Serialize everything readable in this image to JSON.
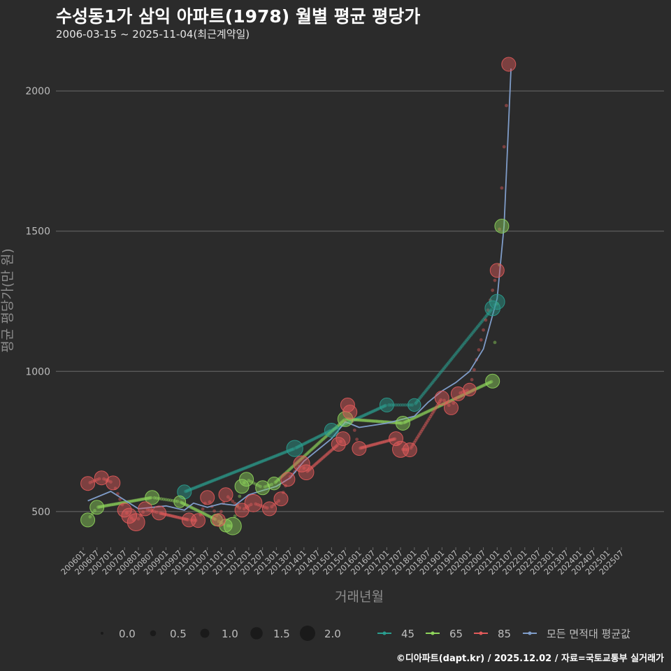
{
  "title": "수성동1가 삼익 아파트(1978) 월별 평균 평당가",
  "subtitle": "2006-03-15 ~ 2025-11-04(최근계약일)",
  "caption": "©디아파트(dapt.kr) / 2025.12.02 / 자료=국토교통부 실거래가",
  "colors": {
    "background": "#2b2b2b",
    "grid": "#6b6b6b",
    "text": "#bdbdbd",
    "series_45": "#2a9d8f",
    "series_65": "#8ed45b",
    "series_85": "#e05a5a",
    "series_avg": "#7f9cc8"
  },
  "chart_data": {
    "type": "scatter",
    "xlabel": "거래년월",
    "ylabel": "평균 평당가(만 원)",
    "ylim": [
      380,
      2130
    ],
    "yticks": [
      500,
      1000,
      1500,
      2000
    ],
    "xticks": [
      "200601",
      "200607",
      "200701",
      "200707",
      "200801",
      "200807",
      "200901",
      "200907",
      "201001",
      "201007",
      "201101",
      "201107",
      "201201",
      "201207",
      "201301",
      "201307",
      "201401",
      "201407",
      "201501",
      "201507",
      "201601",
      "201607",
      "201701",
      "201707",
      "201801",
      "201807",
      "201901",
      "201907",
      "202001",
      "202007",
      "202101",
      "202107",
      "202201",
      "202207",
      "202301",
      "202307",
      "202401",
      "202407",
      "202501",
      "202507"
    ],
    "size_legend": {
      "values": [
        0.0,
        0.5,
        1.0,
        1.5,
        2.0
      ],
      "labels": [
        "0.0",
        "0.5",
        "1.0",
        "1.5",
        "2.0"
      ]
    },
    "series": [
      {
        "name": "45",
        "points": [
          {
            "x": "200909",
            "y": 570,
            "s": 1.0
          },
          {
            "x": "201309",
            "y": 725,
            "s": 1.2
          },
          {
            "x": "201501",
            "y": 790,
            "s": 1.0
          },
          {
            "x": "201701",
            "y": 880,
            "s": 1.0
          },
          {
            "x": "201801",
            "y": 880,
            "s": 0.9
          },
          {
            "x": "202011",
            "y": 1225,
            "s": 1.1
          },
          {
            "x": "202101",
            "y": 1248,
            "s": 1.1
          }
        ]
      },
      {
        "name": "65",
        "points": [
          {
            "x": "200603",
            "y": 470,
            "s": 1.0
          },
          {
            "x": "200607",
            "y": 515,
            "s": 1.0
          },
          {
            "x": "200807",
            "y": 550,
            "s": 1.0
          },
          {
            "x": "200907",
            "y": 535,
            "s": 0.8
          },
          {
            "x": "201011",
            "y": 470,
            "s": 0.8
          },
          {
            "x": "201103",
            "y": 450,
            "s": 0.9
          },
          {
            "x": "201106",
            "y": 448,
            "s": 1.3
          },
          {
            "x": "201110",
            "y": 590,
            "s": 1.0
          },
          {
            "x": "201112",
            "y": 615,
            "s": 1.0
          },
          {
            "x": "201207",
            "y": 585,
            "s": 1.0
          },
          {
            "x": "201212",
            "y": 600,
            "s": 0.9
          },
          {
            "x": "201507",
            "y": 830,
            "s": 1.1
          },
          {
            "x": "201708",
            "y": 815,
            "s": 1.0
          },
          {
            "x": "202011",
            "y": 965,
            "s": 1.0
          },
          {
            "x": "202103",
            "y": 1518,
            "s": 1.0
          }
        ]
      },
      {
        "name": "85",
        "points": [
          {
            "x": "200603",
            "y": 600,
            "s": 1.0
          },
          {
            "x": "200609",
            "y": 620,
            "s": 1.0
          },
          {
            "x": "200702",
            "y": 602,
            "s": 1.0
          },
          {
            "x": "200707",
            "y": 505,
            "s": 1.0
          },
          {
            "x": "200709",
            "y": 485,
            "s": 1.1
          },
          {
            "x": "200712",
            "y": 462,
            "s": 1.3
          },
          {
            "x": "200804",
            "y": 510,
            "s": 1.0
          },
          {
            "x": "200810",
            "y": 495,
            "s": 1.0
          },
          {
            "x": "200911",
            "y": 470,
            "s": 1.0
          },
          {
            "x": "201003",
            "y": 468,
            "s": 1.0
          },
          {
            "x": "201007",
            "y": 550,
            "s": 1.0
          },
          {
            "x": "201012",
            "y": 470,
            "s": 0.9
          },
          {
            "x": "201103",
            "y": 560,
            "s": 1.0
          },
          {
            "x": "201110",
            "y": 505,
            "s": 1.0
          },
          {
            "x": "201203",
            "y": 530,
            "s": 1.3
          },
          {
            "x": "201210",
            "y": 510,
            "s": 1.0
          },
          {
            "x": "201303",
            "y": 545,
            "s": 1.0
          },
          {
            "x": "201306",
            "y": 615,
            "s": 1.0
          },
          {
            "x": "201312",
            "y": 670,
            "s": 1.2
          },
          {
            "x": "201402",
            "y": 640,
            "s": 1.1
          },
          {
            "x": "201504",
            "y": 740,
            "s": 1.0
          },
          {
            "x": "201506",
            "y": 760,
            "s": 1.0
          },
          {
            "x": "201508",
            "y": 880,
            "s": 1.0
          },
          {
            "x": "201509",
            "y": 855,
            "s": 1.0
          },
          {
            "x": "201601",
            "y": 725,
            "s": 1.0
          },
          {
            "x": "201705",
            "y": 760,
            "s": 1.0
          },
          {
            "x": "201707",
            "y": 722,
            "s": 1.2
          },
          {
            "x": "201711",
            "y": 720,
            "s": 1.0
          },
          {
            "x": "201901",
            "y": 905,
            "s": 1.0
          },
          {
            "x": "201905",
            "y": 870,
            "s": 1.0
          },
          {
            "x": "201908",
            "y": 920,
            "s": 1.0
          },
          {
            "x": "202001",
            "y": 935,
            "s": 0.9
          },
          {
            "x": "202101",
            "y": 1360,
            "s": 1.0
          },
          {
            "x": "202106",
            "y": 2095,
            "s": 1.0
          }
        ]
      },
      {
        "name": "모든 면적대 평균값",
        "line": [
          {
            "x": "200603",
            "y": 538
          },
          {
            "x": "200701",
            "y": 572
          },
          {
            "x": "200801",
            "y": 510
          },
          {
            "x": "200901",
            "y": 520
          },
          {
            "x": "200909",
            "y": 505
          },
          {
            "x": "201001",
            "y": 530
          },
          {
            "x": "201007",
            "y": 515
          },
          {
            "x": "201101",
            "y": 528
          },
          {
            "x": "201107",
            "y": 522
          },
          {
            "x": "201201",
            "y": 560
          },
          {
            "x": "201301",
            "y": 590
          },
          {
            "x": "201307",
            "y": 620
          },
          {
            "x": "201401",
            "y": 680
          },
          {
            "x": "201501",
            "y": 760
          },
          {
            "x": "201507",
            "y": 820
          },
          {
            "x": "201601",
            "y": 800
          },
          {
            "x": "201701",
            "y": 815
          },
          {
            "x": "201801",
            "y": 840
          },
          {
            "x": "201807",
            "y": 890
          },
          {
            "x": "201901",
            "y": 930
          },
          {
            "x": "201907",
            "y": 960
          },
          {
            "x": "202001",
            "y": 1000
          },
          {
            "x": "202007",
            "y": 1080
          },
          {
            "x": "202101",
            "y": 1260
          },
          {
            "x": "202104",
            "y": 1520
          },
          {
            "x": "202107",
            "y": 2080
          }
        ]
      }
    ]
  }
}
